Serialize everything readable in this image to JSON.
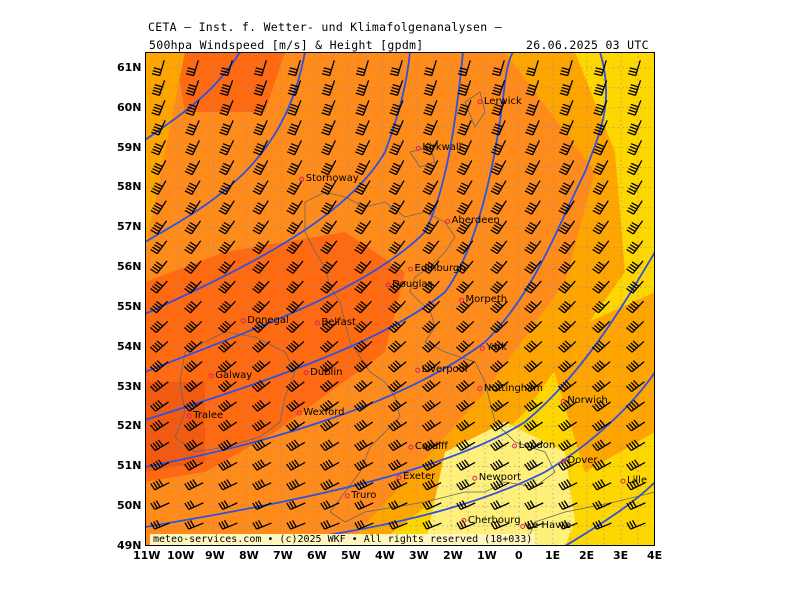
{
  "header": {
    "institute": "CETA – Inst. f. Wetter- und Klimafolgenanalysen –",
    "parameter": "500hpa Windspeed [m/s] & Height [gpdm]",
    "datetime": "26.06.2025 03 UTC"
  },
  "map": {
    "lat_labels": [
      "61N",
      "60N",
      "59N",
      "58N",
      "57N",
      "56N",
      "55N",
      "54N",
      "53N",
      "52N",
      "51N",
      "50N",
      "49N"
    ],
    "lon_labels": [
      "11W",
      "10W",
      "9W",
      "8W",
      "7W",
      "6W",
      "5W",
      "4W",
      "3W",
      "2W",
      "1W",
      "0",
      "1E",
      "2E",
      "3E",
      "4E"
    ],
    "lat_range": [
      49,
      61.4
    ],
    "lon_range": [
      -11,
      4
    ],
    "cities": [
      {
        "name": "Lerwick",
        "lat": 60.15,
        "lon": -1.15
      },
      {
        "name": "Kirkwall",
        "lat": 58.98,
        "lon": -2.96
      },
      {
        "name": "Stornoway",
        "lat": 58.21,
        "lon": -6.39
      },
      {
        "name": "Aberdeen",
        "lat": 57.15,
        "lon": -2.1
      },
      {
        "name": "Edinburgh",
        "lat": 55.95,
        "lon": -3.19
      },
      {
        "name": "Douglas",
        "lat": 55.55,
        "lon": -3.85
      },
      {
        "name": "Morpeth",
        "lat": 55.17,
        "lon": -1.69
      },
      {
        "name": "Donegal",
        "lat": 54.65,
        "lon": -8.11
      },
      {
        "name": "Belfast",
        "lat": 54.6,
        "lon": -5.93
      },
      {
        "name": "York",
        "lat": 53.96,
        "lon": -1.08
      },
      {
        "name": "Liverpool",
        "lat": 53.41,
        "lon": -2.98
      },
      {
        "name": "Galway",
        "lat": 53.27,
        "lon": -9.05
      },
      {
        "name": "Dublin",
        "lat": 53.35,
        "lon": -6.26
      },
      {
        "name": "Nottingham",
        "lat": 52.95,
        "lon": -1.15
      },
      {
        "name": "Norwich",
        "lat": 52.63,
        "lon": 1.3
      },
      {
        "name": "Wexford",
        "lat": 52.34,
        "lon": -6.46
      },
      {
        "name": "Tralee",
        "lat": 52.27,
        "lon": -9.7
      },
      {
        "name": "Cardiff",
        "lat": 51.48,
        "lon": -3.18
      },
      {
        "name": "London",
        "lat": 51.51,
        "lon": -0.13
      },
      {
        "name": "Dover",
        "lat": 51.13,
        "lon": 1.31
      },
      {
        "name": "Exeter",
        "lat": 50.72,
        "lon": -3.53
      },
      {
        "name": "Newport",
        "lat": 50.7,
        "lon": -1.3
      },
      {
        "name": "Truro",
        "lat": 50.26,
        "lon": -5.05
      },
      {
        "name": "Lille",
        "lat": 50.63,
        "lon": 3.06
      },
      {
        "name": "Le Havre",
        "lat": 49.49,
        "lon": 0.11
      },
      {
        "name": "Cherbourg",
        "lat": 49.64,
        "lon": -1.62
      }
    ]
  },
  "colors": {
    "wind_low": "#fff07a",
    "wind_mid": "#ffd700",
    "wind_high": "#ffa500",
    "wind_higher": "#ff8c1a",
    "wind_max": "#ff6a10",
    "height_contour": "#3050e0",
    "coast": "#777777",
    "grid": "#8888bb"
  },
  "footer": "meteo-services.com • (c)2025 WKF • All rights reserved (18+033)"
}
